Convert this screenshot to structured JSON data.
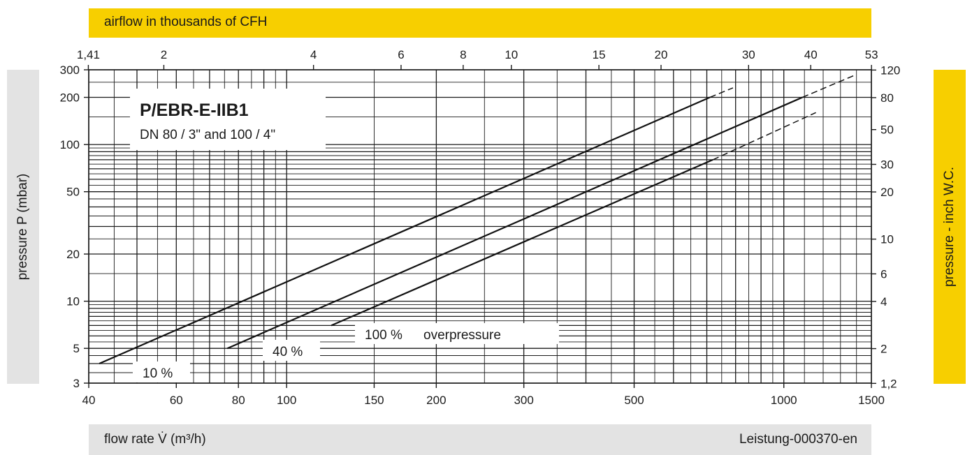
{
  "header": {
    "top_axis_label": "airflow in thousands of CFH"
  },
  "footer": {
    "x_axis_label": "flow rate V̇ (m³/h)",
    "code": "Leistung-000370-en"
  },
  "left_axis_label": "pressure P (mbar)",
  "right_axis_label": "pressure  - inch W.C.",
  "chart_data": {
    "type": "line",
    "title": "P/EBR-E-IIB1",
    "subtitle": "DN 80 / 3\" and 100 / 4\"",
    "xlabel": "flow rate V̇ (m³/h)",
    "ylabel": "pressure P (mbar)",
    "x_scale": "log",
    "y_scale": "log",
    "xlim": [
      40,
      1500
    ],
    "ylim": [
      3,
      300
    ],
    "grid": true,
    "x_ticks": [
      40,
      60,
      80,
      100,
      150,
      200,
      300,
      500,
      1000,
      1500
    ],
    "y_ticks": [
      3,
      5,
      10,
      20,
      50,
      100,
      200,
      300
    ],
    "top_axis": {
      "label": "airflow in thousands of CFH",
      "ticks": [
        1.41,
        2,
        4,
        6,
        8,
        10,
        15,
        20,
        30,
        40,
        53
      ],
      "tick_labels": [
        "1,41",
        "2",
        "4",
        "6",
        "8",
        "10",
        "15",
        "20",
        "30",
        "40",
        "53"
      ]
    },
    "right_axis": {
      "label": "pressure  - inch W.C.",
      "ticks": [
        1.2,
        2,
        4,
        6,
        10,
        20,
        30,
        50,
        80,
        120
      ],
      "tick_labels": [
        "1,2",
        "2",
        "4",
        "6",
        "10",
        "20",
        "30",
        "50",
        "80",
        "120"
      ]
    },
    "x_tick_labels": [
      "40",
      "60",
      "80",
      "100",
      "150",
      "200",
      "300",
      "500",
      "1000",
      "1500"
    ],
    "y_tick_labels": [
      "3",
      "5",
      "10",
      "20",
      "50",
      "100",
      "200",
      "300"
    ],
    "series": [
      {
        "name": "10 %",
        "solid": [
          [
            42,
            4
          ],
          [
            710,
            200
          ]
        ],
        "dashed": [
          [
            710,
            200
          ],
          [
            790,
            230
          ]
        ]
      },
      {
        "name": "40 %",
        "solid": [
          [
            76,
            5
          ],
          [
            1090,
            200
          ]
        ],
        "dashed": [
          [
            1090,
            200
          ],
          [
            1400,
            280
          ]
        ]
      },
      {
        "name": "100 %",
        "solid": [
          [
            123,
            7
          ],
          [
            720,
            80
          ]
        ],
        "dashed": [
          [
            720,
            80
          ],
          [
            1160,
            160
          ]
        ]
      }
    ],
    "annotation": "overpressure"
  }
}
